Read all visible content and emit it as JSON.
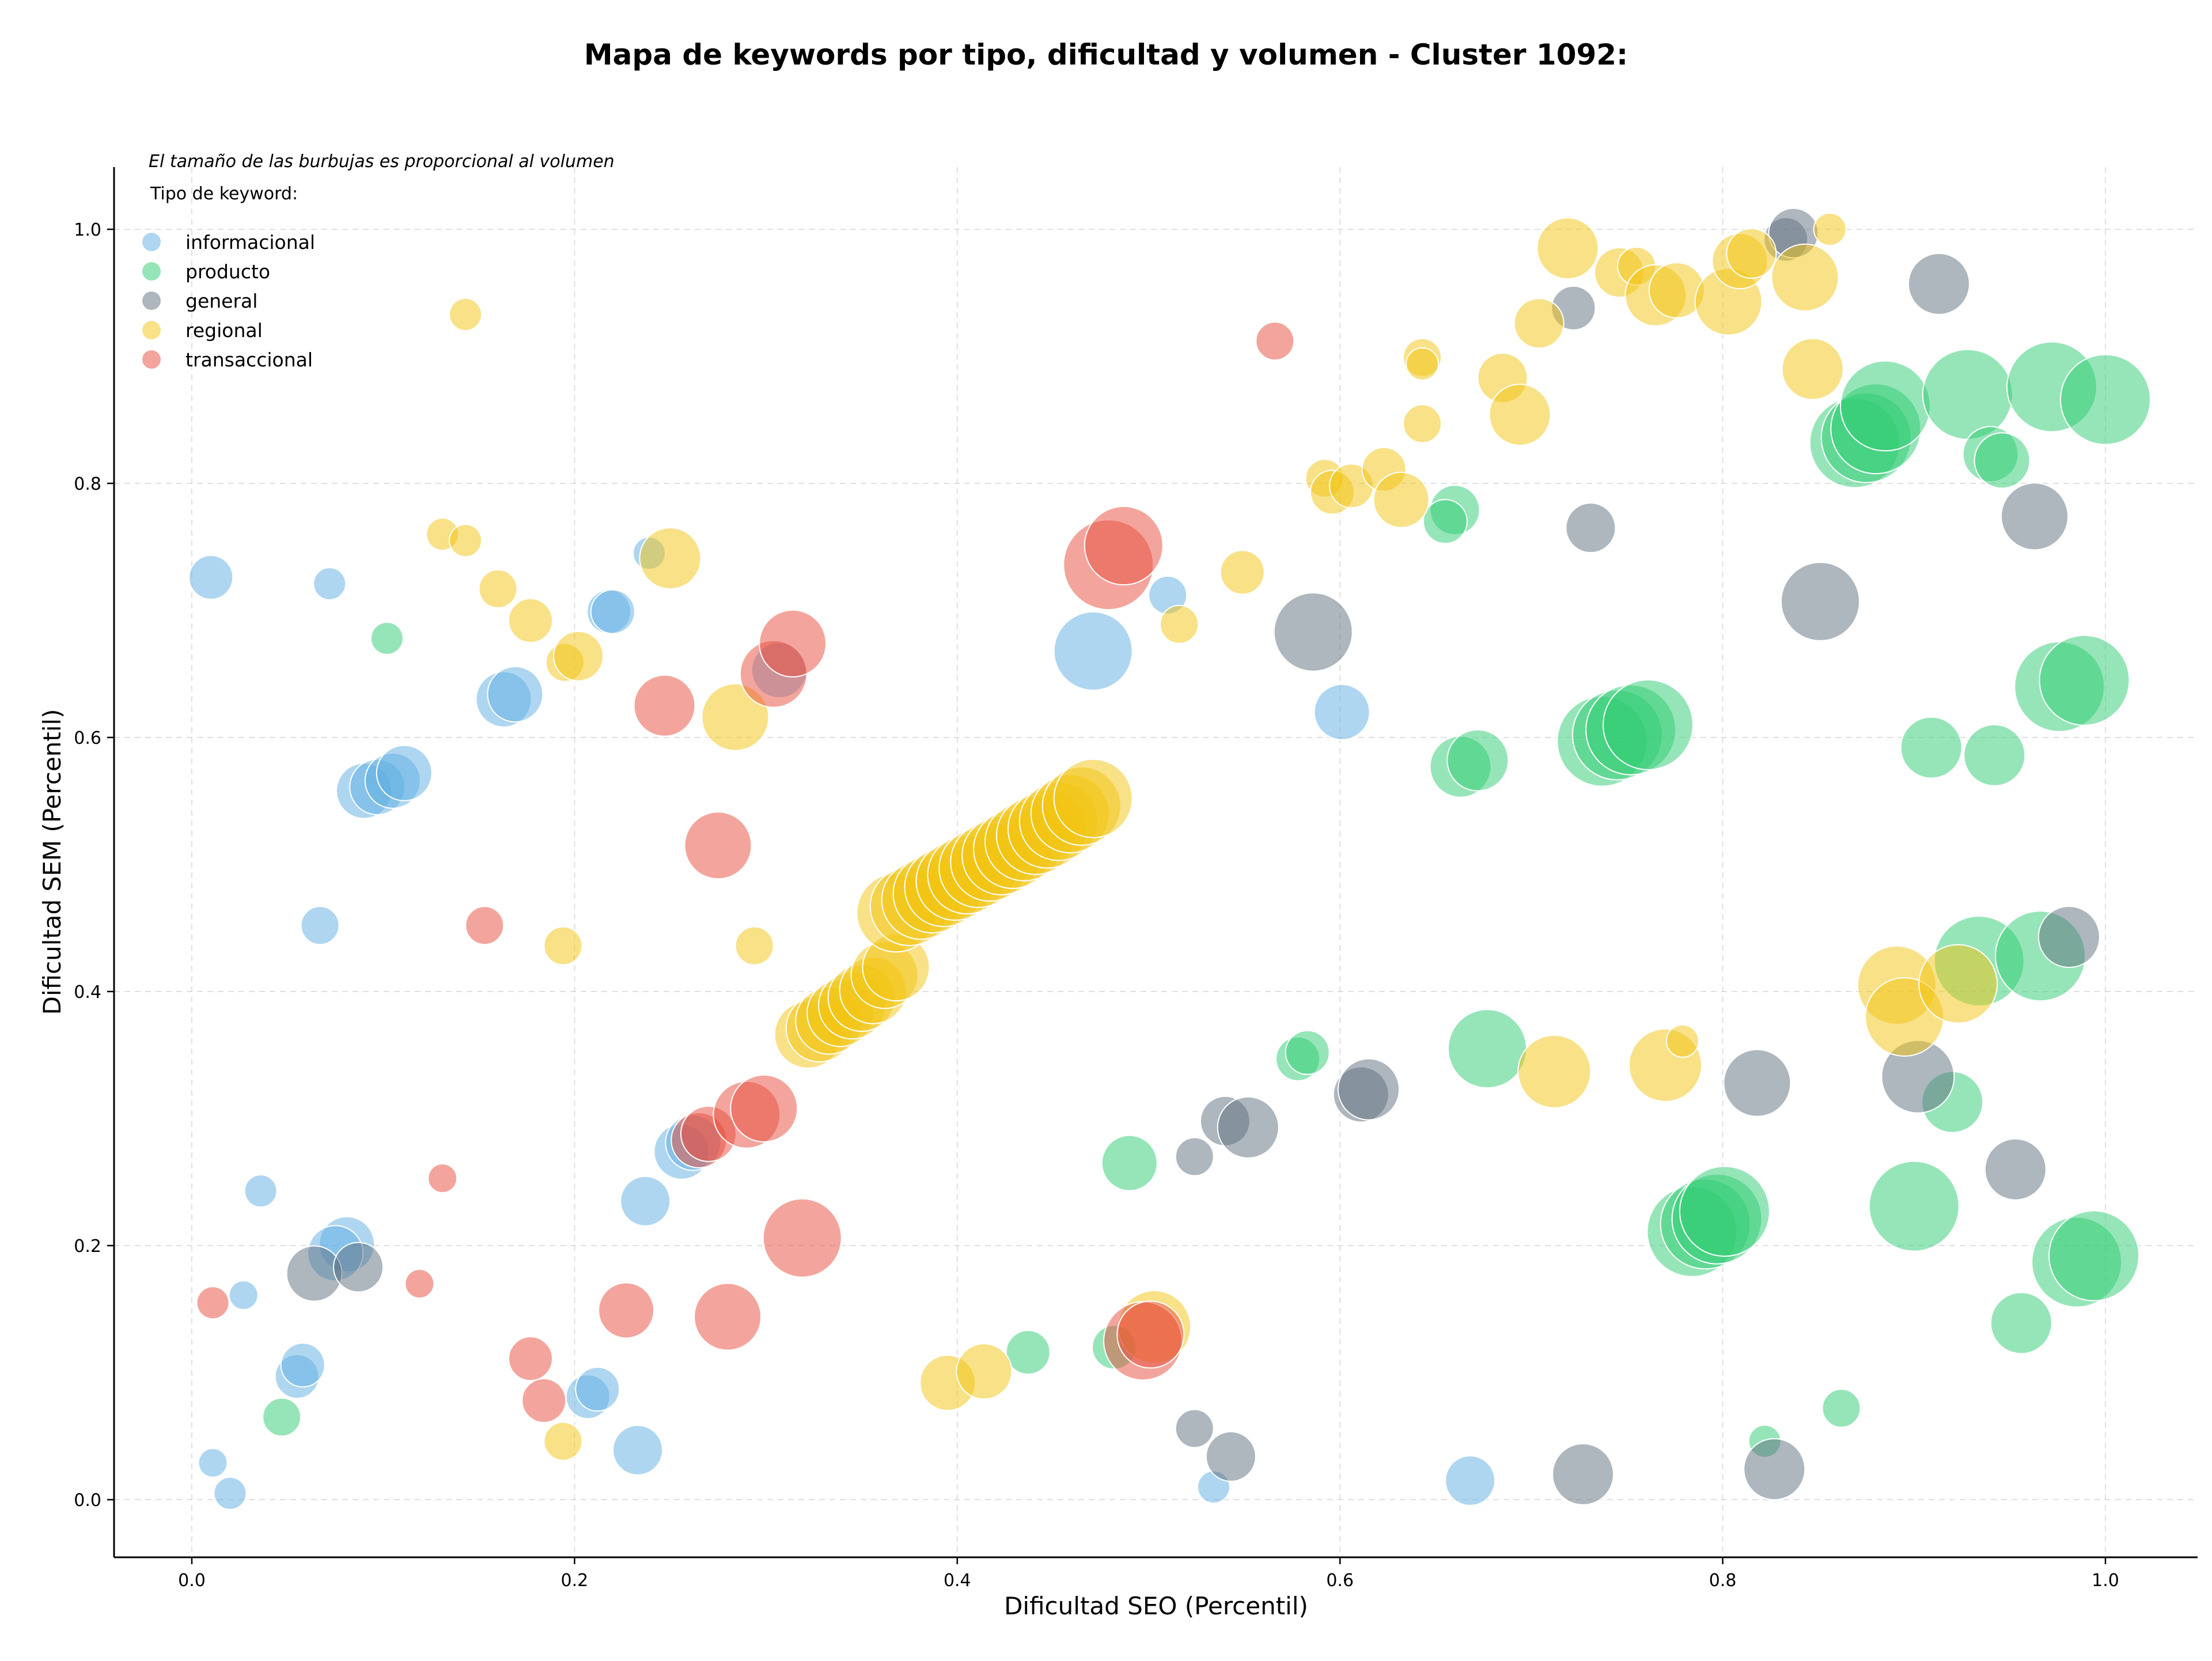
{
  "chart_data": {
    "type": "scatter",
    "title": "Mapa de keywords por tipo, dificultad y volumen - Cluster 1092:",
    "xlabel": "Dificultad SEO (Percentil)",
    "ylabel": "Dificultad SEM (Percentil)",
    "xlim": [
      -0.04,
      1.05
    ],
    "ylim": [
      -0.045,
      1.05
    ],
    "xticks": [
      0.0,
      0.2,
      0.4,
      0.6,
      0.8,
      1.0
    ],
    "yticks": [
      0.0,
      0.2,
      0.4,
      0.6,
      0.8,
      1.0
    ],
    "grid": true,
    "annotation": "El tamaño de las burbujas es proporcional al volumen",
    "legend_title": "Tipo de keyword:",
    "legend_position": "top-left",
    "series": [
      {
        "name": "informacional",
        "color": "#5DADE2",
        "points": [
          {
            "x": 0.01,
            "y": 0.726,
            "r": 2
          },
          {
            "x": 0.072,
            "y": 0.721,
            "r": 1
          },
          {
            "x": 0.239,
            "y": 0.745,
            "r": 1
          },
          {
            "x": 0.218,
            "y": 0.699,
            "r": 2
          },
          {
            "x": 0.22,
            "y": 0.699,
            "r": 2
          },
          {
            "x": 0.163,
            "y": 0.63,
            "r": 3
          },
          {
            "x": 0.169,
            "y": 0.634,
            "r": 3
          },
          {
            "x": 0.09,
            "y": 0.558,
            "r": 3
          },
          {
            "x": 0.097,
            "y": 0.561,
            "r": 3
          },
          {
            "x": 0.105,
            "y": 0.566,
            "r": 3
          },
          {
            "x": 0.111,
            "y": 0.572,
            "r": 3
          },
          {
            "x": 0.067,
            "y": 0.452,
            "r": 1.5
          },
          {
            "x": 0.036,
            "y": 0.243,
            "r": 1
          },
          {
            "x": 0.027,
            "y": 0.161,
            "r": 0.7
          },
          {
            "x": 0.081,
            "y": 0.201,
            "r": 3
          },
          {
            "x": 0.075,
            "y": 0.194,
            "r": 3
          },
          {
            "x": 0.055,
            "y": 0.097,
            "r": 2
          },
          {
            "x": 0.058,
            "y": 0.106,
            "r": 2
          },
          {
            "x": 0.011,
            "y": 0.029,
            "r": 0.7
          },
          {
            "x": 0.02,
            "y": 0.005,
            "r": 1
          },
          {
            "x": 0.207,
            "y": 0.081,
            "r": 2
          },
          {
            "x": 0.212,
            "y": 0.087,
            "r": 2
          },
          {
            "x": 0.233,
            "y": 0.039,
            "r": 2.5
          },
          {
            "x": 0.237,
            "y": 0.235,
            "r": 2.5
          },
          {
            "x": 0.256,
            "y": 0.274,
            "r": 3
          },
          {
            "x": 0.262,
            "y": 0.281,
            "r": 3
          },
          {
            "x": 0.307,
            "y": 0.653,
            "r": 3
          },
          {
            "x": 0.471,
            "y": 0.668,
            "r": 5
          },
          {
            "x": 0.51,
            "y": 0.712,
            "r": 1.5
          },
          {
            "x": 0.601,
            "y": 0.62,
            "r": 3
          },
          {
            "x": 0.534,
            "y": 0.01,
            "r": 1
          },
          {
            "x": 0.668,
            "y": 0.015,
            "r": 2.5
          }
        ]
      },
      {
        "name": "producto",
        "color": "#2ECC71",
        "points": [
          {
            "x": 0.102,
            "y": 0.678,
            "r": 1
          },
          {
            "x": 0.047,
            "y": 0.065,
            "r": 1.5
          },
          {
            "x": 0.437,
            "y": 0.116,
            "r": 2
          },
          {
            "x": 0.482,
            "y": 0.12,
            "r": 2
          },
          {
            "x": 0.49,
            "y": 0.265,
            "r": 3
          },
          {
            "x": 0.578,
            "y": 0.347,
            "r": 2
          },
          {
            "x": 0.583,
            "y": 0.352,
            "r": 2
          },
          {
            "x": 0.66,
            "y": 0.779,
            "r": 2.5
          },
          {
            "x": 0.655,
            "y": 0.77,
            "r": 2
          },
          {
            "x": 0.663,
            "y": 0.577,
            "r": 3.5
          },
          {
            "x": 0.672,
            "y": 0.582,
            "r": 3.5
          },
          {
            "x": 0.677,
            "y": 0.355,
            "r": 5
          },
          {
            "x": 0.737,
            "y": 0.597,
            "r": 6
          },
          {
            "x": 0.745,
            "y": 0.602,
            "r": 6
          },
          {
            "x": 0.752,
            "y": 0.606,
            "r": 6
          },
          {
            "x": 0.761,
            "y": 0.61,
            "r": 6
          },
          {
            "x": 0.784,
            "y": 0.211,
            "r": 6
          },
          {
            "x": 0.791,
            "y": 0.217,
            "r": 6
          },
          {
            "x": 0.797,
            "y": 0.221,
            "r": 6
          },
          {
            "x": 0.801,
            "y": 0.227,
            "r": 6
          },
          {
            "x": 0.822,
            "y": 0.046,
            "r": 1
          },
          {
            "x": 0.862,
            "y": 0.072,
            "r": 1.5
          },
          {
            "x": 0.869,
            "y": 0.832,
            "r": 6
          },
          {
            "x": 0.875,
            "y": 0.836,
            "r": 6
          },
          {
            "x": 0.88,
            "y": 0.843,
            "r": 6
          },
          {
            "x": 0.885,
            "y": 0.861,
            "r": 6
          },
          {
            "x": 0.9,
            "y": 0.231,
            "r": 6
          },
          {
            "x": 0.909,
            "y": 0.592,
            "r": 3.5
          },
          {
            "x": 0.92,
            "y": 0.313,
            "r": 3.5
          },
          {
            "x": 0.928,
            "y": 0.87,
            "r": 6
          },
          {
            "x": 0.934,
            "y": 0.424,
            "r": 6
          },
          {
            "x": 0.94,
            "y": 0.823,
            "r": 3
          },
          {
            "x": 0.946,
            "y": 0.818,
            "r": 3
          },
          {
            "x": 0.942,
            "y": 0.586,
            "r": 3.5
          },
          {
            "x": 0.956,
            "y": 0.139,
            "r": 3.5
          },
          {
            "x": 0.966,
            "y": 0.428,
            "r": 6
          },
          {
            "x": 0.972,
            "y": 0.876,
            "r": 6
          },
          {
            "x": 0.976,
            "y": 0.64,
            "r": 6
          },
          {
            "x": 0.989,
            "y": 0.645,
            "r": 6
          },
          {
            "x": 0.985,
            "y": 0.187,
            "r": 6
          },
          {
            "x": 0.994,
            "y": 0.192,
            "r": 6
          },
          {
            "x": 1.0,
            "y": 0.866,
            "r": 6
          }
        ]
      },
      {
        "name": "general",
        "color": "#5D6D7E",
        "points": [
          {
            "x": 0.064,
            "y": 0.178,
            "r": 3
          },
          {
            "x": 0.087,
            "y": 0.183,
            "r": 2.5
          },
          {
            "x": 0.524,
            "y": 0.27,
            "r": 1.5
          },
          {
            "x": 0.54,
            "y": 0.298,
            "r": 2.5
          },
          {
            "x": 0.552,
            "y": 0.293,
            "r": 3.5
          },
          {
            "x": 0.524,
            "y": 0.056,
            "r": 1.5
          },
          {
            "x": 0.543,
            "y": 0.034,
            "r": 2.5
          },
          {
            "x": 0.586,
            "y": 0.683,
            "r": 5
          },
          {
            "x": 0.611,
            "y": 0.319,
            "r": 3
          },
          {
            "x": 0.615,
            "y": 0.323,
            "r": 3.5
          },
          {
            "x": 0.722,
            "y": 0.938,
            "r": 2
          },
          {
            "x": 0.731,
            "y": 0.765,
            "r": 2.5
          },
          {
            "x": 0.727,
            "y": 0.02,
            "r": 3.5
          },
          {
            "x": 0.818,
            "y": 0.328,
            "r": 4
          },
          {
            "x": 0.827,
            "y": 0.024,
            "r": 3.5
          },
          {
            "x": 0.833,
            "y": 0.992,
            "r": 2
          },
          {
            "x": 0.837,
            "y": 0.997,
            "r": 2.5
          },
          {
            "x": 0.851,
            "y": 0.707,
            "r": 5
          },
          {
            "x": 0.902,
            "y": 0.333,
            "r": 4.5
          },
          {
            "x": 0.913,
            "y": 0.957,
            "r": 3.5
          },
          {
            "x": 0.953,
            "y": 0.26,
            "r": 3.5
          },
          {
            "x": 0.963,
            "y": 0.774,
            "r": 4
          },
          {
            "x": 0.981,
            "y": 0.443,
            "r": 3.5
          }
        ]
      },
      {
        "name": "regional",
        "color": "#F1C40F",
        "points": [
          {
            "x": 0.143,
            "y": 0.933,
            "r": 1
          },
          {
            "x": 0.131,
            "y": 0.76,
            "r": 1
          },
          {
            "x": 0.143,
            "y": 0.755,
            "r": 1
          },
          {
            "x": 0.16,
            "y": 0.717,
            "r": 1.5
          },
          {
            "x": 0.177,
            "y": 0.692,
            "r": 2
          },
          {
            "x": 0.195,
            "y": 0.659,
            "r": 1.5
          },
          {
            "x": 0.202,
            "y": 0.664,
            "r": 2.5
          },
          {
            "x": 0.25,
            "y": 0.741,
            "r": 3.5
          },
          {
            "x": 0.284,
            "y": 0.616,
            "r": 4
          },
          {
            "x": 0.194,
            "y": 0.436,
            "r": 1.5
          },
          {
            "x": 0.294,
            "y": 0.436,
            "r": 1.5
          },
          {
            "x": 0.194,
            "y": 0.046,
            "r": 1.5
          },
          {
            "x": 0.395,
            "y": 0.092,
            "r": 3
          },
          {
            "x": 0.414,
            "y": 0.101,
            "r": 3
          },
          {
            "x": 0.322,
            "y": 0.366,
            "r": 4
          },
          {
            "x": 0.328,
            "y": 0.371,
            "r": 4
          },
          {
            "x": 0.333,
            "y": 0.377,
            "r": 4
          },
          {
            "x": 0.339,
            "y": 0.383,
            "r": 4
          },
          {
            "x": 0.345,
            "y": 0.389,
            "r": 4
          },
          {
            "x": 0.35,
            "y": 0.395,
            "r": 4
          },
          {
            "x": 0.356,
            "y": 0.401,
            "r": 4
          },
          {
            "x": 0.362,
            "y": 0.413,
            "r": 4
          },
          {
            "x": 0.368,
            "y": 0.419,
            "r": 4
          },
          {
            "x": 0.368,
            "y": 0.462,
            "r": 5
          },
          {
            "x": 0.375,
            "y": 0.467,
            "r": 5
          },
          {
            "x": 0.381,
            "y": 0.472,
            "r": 5
          },
          {
            "x": 0.387,
            "y": 0.477,
            "r": 5
          },
          {
            "x": 0.393,
            "y": 0.482,
            "r": 5
          },
          {
            "x": 0.399,
            "y": 0.487,
            "r": 5
          },
          {
            "x": 0.405,
            "y": 0.492,
            "r": 5
          },
          {
            "x": 0.411,
            "y": 0.497,
            "r": 5
          },
          {
            "x": 0.417,
            "y": 0.502,
            "r": 5
          },
          {
            "x": 0.423,
            "y": 0.507,
            "r": 5
          },
          {
            "x": 0.429,
            "y": 0.512,
            "r": 5
          },
          {
            "x": 0.435,
            "y": 0.518,
            "r": 5
          },
          {
            "x": 0.441,
            "y": 0.523,
            "r": 5
          },
          {
            "x": 0.447,
            "y": 0.528,
            "r": 5
          },
          {
            "x": 0.453,
            "y": 0.534,
            "r": 5
          },
          {
            "x": 0.459,
            "y": 0.54,
            "r": 5
          },
          {
            "x": 0.465,
            "y": 0.546,
            "r": 5
          },
          {
            "x": 0.471,
            "y": 0.552,
            "r": 5
          },
          {
            "x": 0.503,
            "y": 0.136,
            "r": 4.5
          },
          {
            "x": 0.516,
            "y": 0.689,
            "r": 1.5
          },
          {
            "x": 0.549,
            "y": 0.73,
            "r": 2
          },
          {
            "x": 0.592,
            "y": 0.804,
            "r": 1.5
          },
          {
            "x": 0.596,
            "y": 0.793,
            "r": 2
          },
          {
            "x": 0.606,
            "y": 0.798,
            "r": 2
          },
          {
            "x": 0.623,
            "y": 0.811,
            "r": 2
          },
          {
            "x": 0.632,
            "y": 0.787,
            "r": 3
          },
          {
            "x": 0.643,
            "y": 0.899,
            "r": 1.5
          },
          {
            "x": 0.643,
            "y": 0.894,
            "r": 1
          },
          {
            "x": 0.643,
            "y": 0.847,
            "r": 1.5
          },
          {
            "x": 0.685,
            "y": 0.883,
            "r": 2.5
          },
          {
            "x": 0.694,
            "y": 0.854,
            "r": 3.5
          },
          {
            "x": 0.704,
            "y": 0.926,
            "r": 2.5
          },
          {
            "x": 0.719,
            "y": 0.985,
            "r": 3.5
          },
          {
            "x": 0.746,
            "y": 0.966,
            "r": 2.5
          },
          {
            "x": 0.755,
            "y": 0.971,
            "r": 1.5
          },
          {
            "x": 0.765,
            "y": 0.948,
            "r": 3.5
          },
          {
            "x": 0.776,
            "y": 0.952,
            "r": 3
          },
          {
            "x": 0.803,
            "y": 0.943,
            "r": 4
          },
          {
            "x": 0.809,
            "y": 0.975,
            "r": 3
          },
          {
            "x": 0.815,
            "y": 0.981,
            "r": 2.5
          },
          {
            "x": 0.843,
            "y": 0.962,
            "r": 4
          },
          {
            "x": 0.847,
            "y": 0.89,
            "r": 3.5
          },
          {
            "x": 0.856,
            "y": 1.0,
            "r": 1
          },
          {
            "x": 0.712,
            "y": 0.337,
            "r": 4.5
          },
          {
            "x": 0.77,
            "y": 0.342,
            "r": 4.5
          },
          {
            "x": 0.779,
            "y": 0.361,
            "r": 1
          },
          {
            "x": 0.891,
            "y": 0.405,
            "r": 5
          },
          {
            "x": 0.895,
            "y": 0.38,
            "r": 5
          },
          {
            "x": 0.923,
            "y": 0.406,
            "r": 5
          }
        ]
      },
      {
        "name": "transaccional",
        "color": "#E74C3C",
        "points": [
          {
            "x": 0.011,
            "y": 0.155,
            "r": 1
          },
          {
            "x": 0.119,
            "y": 0.17,
            "r": 0.7
          },
          {
            "x": 0.131,
            "y": 0.253,
            "r": 0.7
          },
          {
            "x": 0.153,
            "y": 0.452,
            "r": 1.5
          },
          {
            "x": 0.177,
            "y": 0.111,
            "r": 2
          },
          {
            "x": 0.184,
            "y": 0.078,
            "r": 2
          },
          {
            "x": 0.227,
            "y": 0.149,
            "r": 3
          },
          {
            "x": 0.247,
            "y": 0.625,
            "r": 3.5
          },
          {
            "x": 0.265,
            "y": 0.283,
            "r": 3
          },
          {
            "x": 0.27,
            "y": 0.288,
            "r": 3
          },
          {
            "x": 0.275,
            "y": 0.515,
            "r": 4
          },
          {
            "x": 0.28,
            "y": 0.144,
            "r": 4
          },
          {
            "x": 0.29,
            "y": 0.303,
            "r": 4
          },
          {
            "x": 0.299,
            "y": 0.308,
            "r": 4
          },
          {
            "x": 0.304,
            "y": 0.65,
            "r": 4
          },
          {
            "x": 0.314,
            "y": 0.674,
            "r": 4
          },
          {
            "x": 0.319,
            "y": 0.206,
            "r": 5
          },
          {
            "x": 0.479,
            "y": 0.736,
            "r": 6
          },
          {
            "x": 0.487,
            "y": 0.751,
            "r": 5
          },
          {
            "x": 0.497,
            "y": 0.125,
            "r": 5
          },
          {
            "x": 0.501,
            "y": 0.13,
            "r": 4
          },
          {
            "x": 0.566,
            "y": 0.912,
            "r": 1.5
          }
        ]
      }
    ]
  }
}
